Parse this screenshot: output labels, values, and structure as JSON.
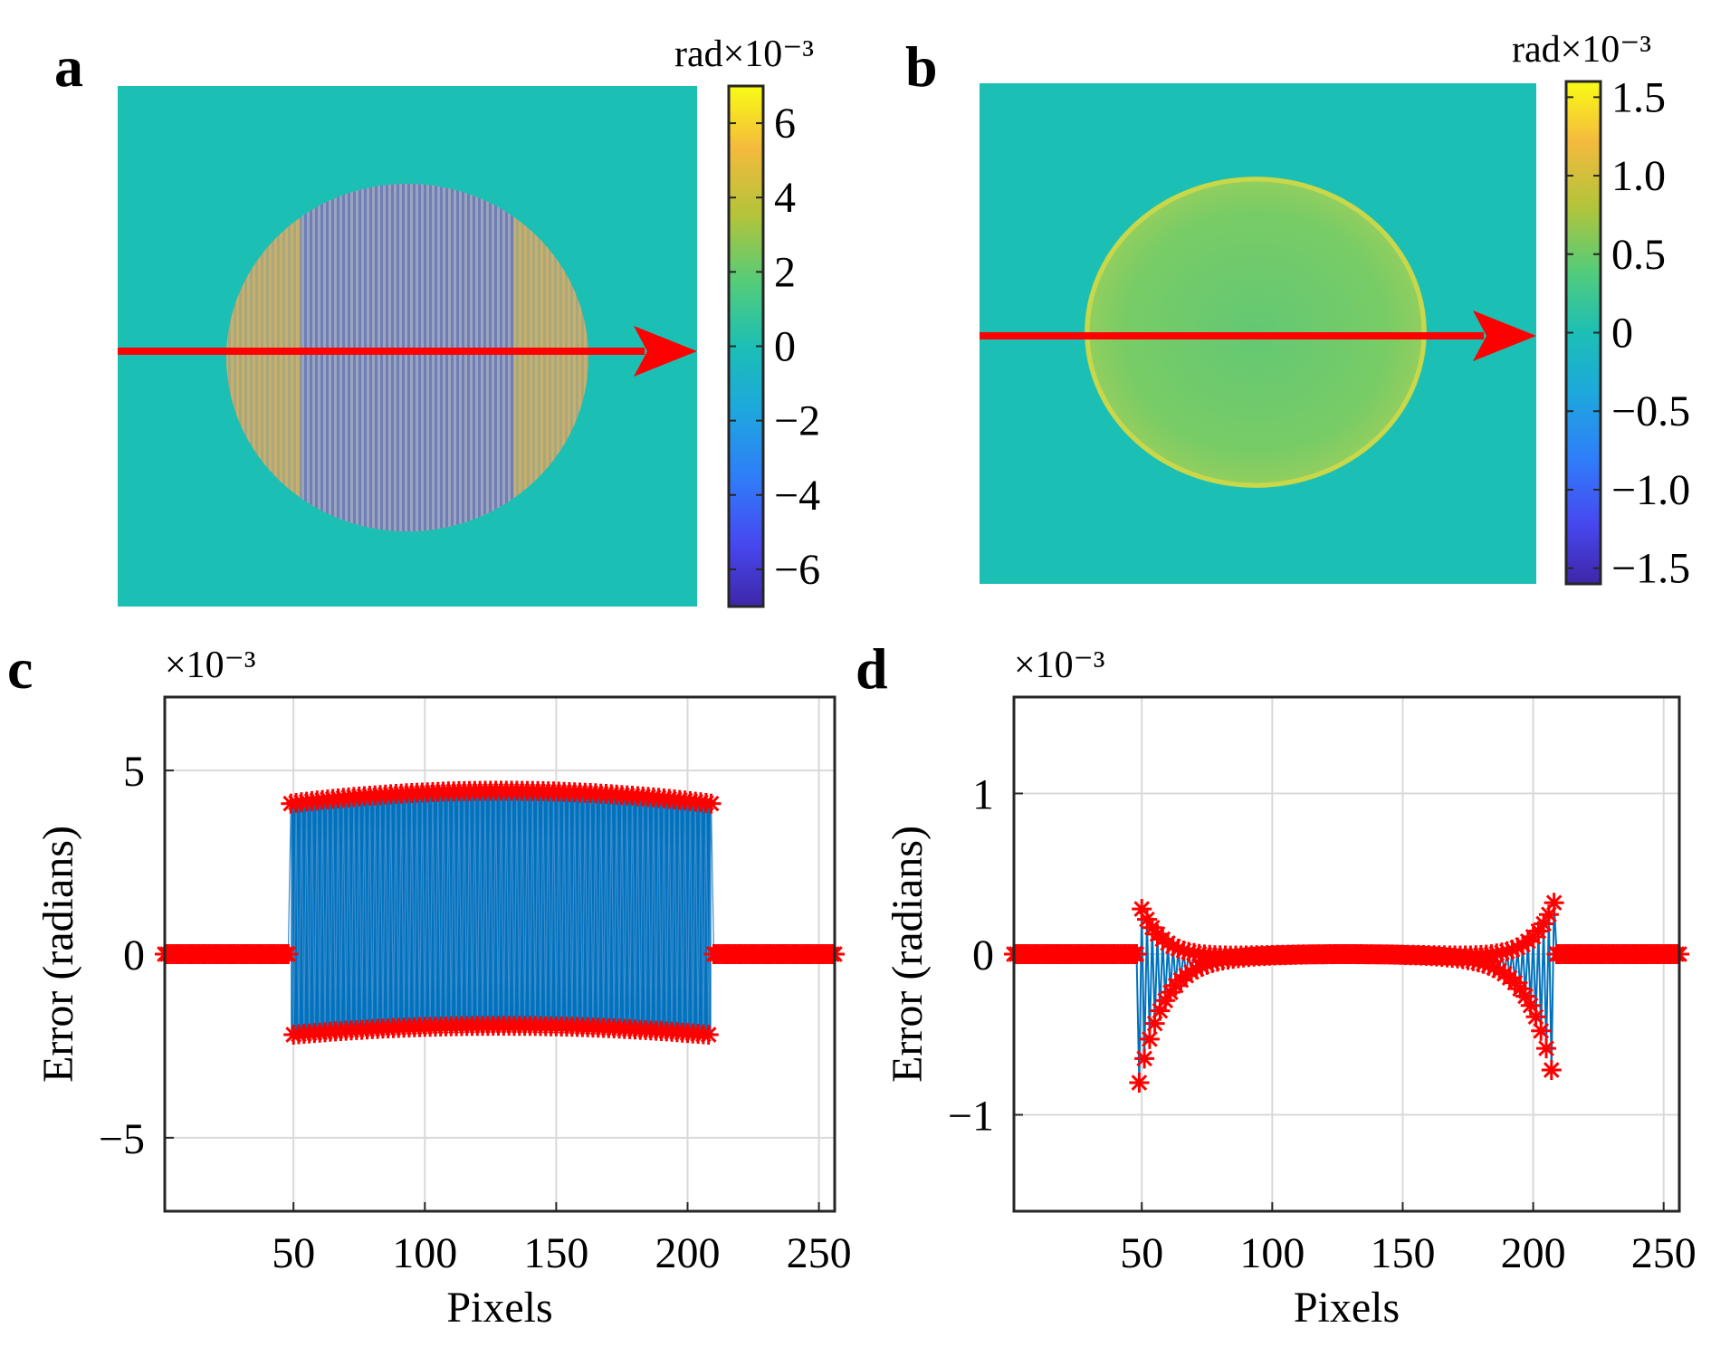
{
  "chart_data": [
    {
      "panel": "a",
      "type": "heatmap",
      "colorbar": {
        "label": "rad×10⁻³",
        "ticks": [
          "6",
          "4",
          "2",
          "0",
          "−2",
          "−4",
          "−6"
        ],
        "tick_values": [
          6,
          4,
          2,
          0,
          -2,
          -4,
          -6
        ],
        "clim": [
          -7,
          7
        ]
      },
      "colormap": "parula",
      "background_color": "#1bbfb4",
      "disk_colors": {
        "center": "#8d97b8",
        "sides": "#bfae73"
      },
      "arrow_color": "#ff0000"
    },
    {
      "panel": "b",
      "type": "heatmap",
      "colorbar": {
        "label": "rad×10⁻³",
        "ticks": [
          "1.5",
          "1.0",
          "0.5",
          "0",
          "−0.5",
          "−1.0",
          "−1.5"
        ],
        "tick_values": [
          1.5,
          1.0,
          0.5,
          0,
          -0.5,
          -1.0,
          -1.5
        ],
        "clim": [
          -1.6,
          1.6
        ]
      },
      "colormap": "parula",
      "background_color": "#1bbfb4",
      "disk_color": "#6fcb6a",
      "arrow_color": "#ff0000"
    },
    {
      "panel": "c",
      "type": "line",
      "exponent_label": "×10⁻³",
      "xlabel": "Pixels",
      "ylabel": "Error (radians)",
      "xlim": [
        1,
        256
      ],
      "ylim": [
        -7,
        7
      ],
      "xticks": [
        50,
        100,
        150,
        200,
        250
      ],
      "xtick_labels": [
        "50",
        "100",
        "150",
        "200",
        "250"
      ],
      "yticks": [
        5,
        0,
        -5
      ],
      "ytick_labels": [
        "5",
        "0",
        "−5"
      ],
      "grid": true,
      "series": [
        {
          "line_color": "#0072bd",
          "marker": "*",
          "marker_color": "#ff0000",
          "segments": [
            {
              "x_range": [
                1,
                49
              ],
              "y": 0
            },
            {
              "x_range": [
                49,
                209
              ],
              "y_upper": {
                "end": 4.1,
                "center": 4.45
              },
              "y_lower": {
                "end": -2.2,
                "center": -1.95
              },
              "alternating": true
            },
            {
              "x_range": [
                209,
                256
              ],
              "y": 0
            }
          ]
        }
      ]
    },
    {
      "panel": "d",
      "type": "line",
      "exponent_label": "×10⁻³",
      "xlabel": "Pixels",
      "ylabel": "Error (radians)",
      "xlim": [
        1,
        256
      ],
      "ylim": [
        -1.6,
        1.6
      ],
      "xticks": [
        50,
        100,
        150,
        200,
        250
      ],
      "xtick_labels": [
        "50",
        "100",
        "150",
        "200",
        "250"
      ],
      "yticks": [
        1,
        0,
        -1
      ],
      "ytick_labels": [
        "1",
        "0",
        "−1"
      ],
      "grid": true,
      "series": [
        {
          "line_color": "#0072bd",
          "marker": "*",
          "marker_color": "#ff0000",
          "upper_peak": 0.32,
          "lower_peak": -0.8,
          "center": 0.0,
          "edges": [
            49,
            208
          ]
        }
      ]
    }
  ],
  "panel_letters": {
    "a": "a",
    "b": "b",
    "c": "c",
    "d": "d"
  }
}
